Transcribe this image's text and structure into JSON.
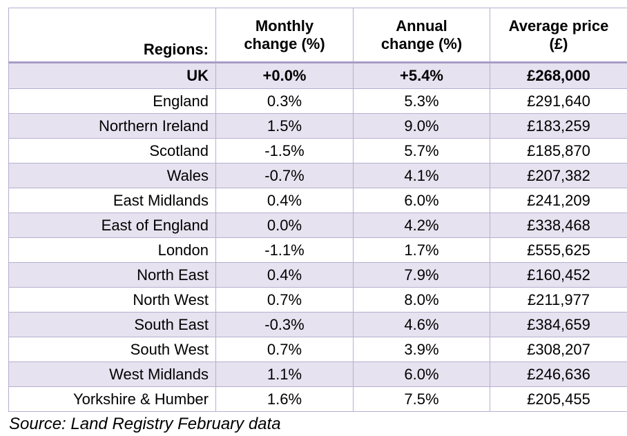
{
  "table": {
    "headers": {
      "region": "Regions:",
      "monthly_line1": "Monthly",
      "monthly_line2": "change (%)",
      "annual_line1": "Annual",
      "annual_line2": "change (%)",
      "price_line1": "Average price",
      "price_line2": "(£)"
    },
    "rows": [
      {
        "region": "UK",
        "monthly": "+0.0%",
        "annual": "+5.4%",
        "price": "£268,000"
      },
      {
        "region": "England",
        "monthly": "0.3%",
        "annual": "5.3%",
        "price": "£291,640"
      },
      {
        "region": "Northern Ireland",
        "monthly": "1.5%",
        "annual": "9.0%",
        "price": "£183,259"
      },
      {
        "region": "Scotland",
        "monthly": "-1.5%",
        "annual": "5.7%",
        "price": "£185,870"
      },
      {
        "region": "Wales",
        "monthly": "-0.7%",
        "annual": "4.1%",
        "price": "£207,382"
      },
      {
        "region": "East Midlands",
        "monthly": "0.4%",
        "annual": "6.0%",
        "price": "£241,209"
      },
      {
        "region": "East of England",
        "monthly": "0.0%",
        "annual": "4.2%",
        "price": "£338,468"
      },
      {
        "region": "London",
        "monthly": "-1.1%",
        "annual": "1.7%",
        "price": "£555,625"
      },
      {
        "region": "North East",
        "monthly": "0.4%",
        "annual": "7.9%",
        "price": "£160,452"
      },
      {
        "region": "North West",
        "monthly": "0.7%",
        "annual": "8.0%",
        "price": "£211,977"
      },
      {
        "region": "South East",
        "monthly": "-0.3%",
        "annual": "4.6%",
        "price": "£384,659"
      },
      {
        "region": "South West",
        "monthly": "0.7%",
        "annual": "3.9%",
        "price": "£308,207"
      },
      {
        "region": "West Midlands",
        "monthly": "1.1%",
        "annual": "6.0%",
        "price": "£246,636"
      },
      {
        "region": "Yorkshire & Humber",
        "monthly": "1.6%",
        "annual": "7.5%",
        "price": "£205,455"
      }
    ]
  },
  "source": "Source: Land Registry February data",
  "colors": {
    "shade": "#e6e2ef",
    "border": "#b7aed0",
    "header_rule": "#a79cc6"
  }
}
